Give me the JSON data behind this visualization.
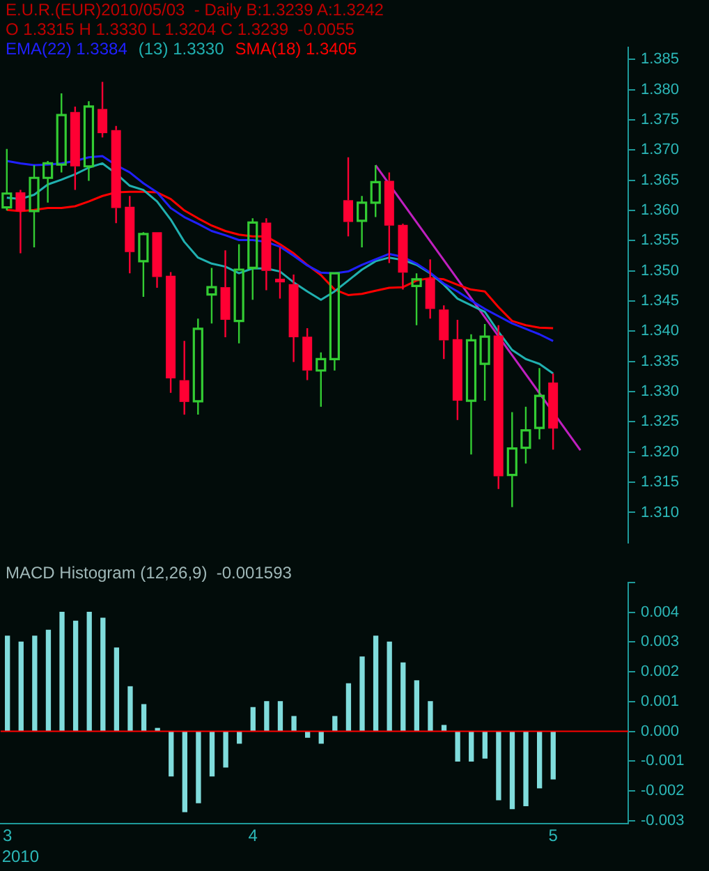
{
  "chart_data": [
    {
      "type": "candlestick",
      "title": "E.U.R.(EUR)2010/05/03  - Daily B:1.3239 A:1.3242",
      "subtitle": "O 1.3315 H 1.3330 L 1.3204 C 1.3239  -0.0055",
      "categories": [
        "3",
        null,
        null,
        null,
        null,
        null,
        null,
        null,
        null,
        null,
        null,
        null,
        null,
        null,
        null,
        null,
        null,
        null,
        "4",
        null,
        null,
        null,
        null,
        null,
        null,
        null,
        null,
        null,
        null,
        null,
        null,
        null,
        null,
        null,
        null,
        null,
        null,
        null,
        null,
        null,
        "5",
        null,
        null,
        null,
        null,
        null
      ],
      "ohlc": [
        [
          1.3605,
          1.3702,
          1.36,
          1.3628
        ],
        [
          1.363,
          1.3634,
          1.3529,
          1.3599
        ],
        [
          1.3599,
          1.3675,
          1.3539,
          1.3654
        ],
        [
          1.3654,
          1.3682,
          1.3613,
          1.3678
        ],
        [
          1.3676,
          1.3794,
          1.3663,
          1.3758
        ],
        [
          1.3763,
          1.3772,
          1.3634,
          1.3673
        ],
        [
          1.3673,
          1.3781,
          1.3649,
          1.3772
        ],
        [
          1.3768,
          1.3813,
          1.3721,
          1.3728
        ],
        [
          1.3733,
          1.374,
          1.3579,
          1.3604
        ],
        [
          1.3606,
          1.3624,
          1.3496,
          1.3531
        ],
        [
          1.3516,
          1.3564,
          1.3457,
          1.3561
        ],
        [
          1.3564,
          1.3564,
          1.3472,
          1.349
        ],
        [
          1.3492,
          1.3498,
          1.3298,
          1.3322
        ],
        [
          1.3319,
          1.3384,
          1.3262,
          1.3283
        ],
        [
          1.3284,
          1.3421,
          1.3262,
          1.3404
        ],
        [
          1.3461,
          1.3505,
          1.3413,
          1.3473
        ],
        [
          1.3473,
          1.3534,
          1.339,
          1.3419
        ],
        [
          1.3417,
          1.3544,
          1.338,
          1.3502
        ],
        [
          1.3505,
          1.3587,
          1.3452,
          1.358
        ],
        [
          1.358,
          1.3587,
          1.3468,
          1.35
        ],
        [
          1.3487,
          1.3539,
          1.3454,
          1.3481
        ],
        [
          1.3478,
          1.3494,
          1.3349,
          1.339
        ],
        [
          1.3391,
          1.3405,
          1.3319,
          1.3335
        ],
        [
          1.3335,
          1.3365,
          1.3275,
          1.3354
        ],
        [
          1.3354,
          1.3496,
          1.3335,
          1.3496
        ],
        [
          1.3617,
          1.3688,
          1.3557,
          1.3581
        ],
        [
          1.3583,
          1.3624,
          1.3539,
          1.3613
        ],
        [
          1.3613,
          1.3675,
          1.3589,
          1.3647
        ],
        [
          1.3649,
          1.3663,
          1.3513,
          1.3575
        ],
        [
          1.3576,
          1.3578,
          1.3469,
          1.3497
        ],
        [
          1.3475,
          1.3496,
          1.341,
          1.3486
        ],
        [
          1.3487,
          1.3519,
          1.3421,
          1.3437
        ],
        [
          1.3436,
          1.3443,
          1.3354,
          1.3385
        ],
        [
          1.3387,
          1.3419,
          1.3253,
          1.3285
        ],
        [
          1.3285,
          1.3395,
          1.3196,
          1.3385
        ],
        [
          1.3346,
          1.3412,
          1.3285,
          1.3391
        ],
        [
          1.3393,
          1.341,
          1.3139,
          1.316
        ],
        [
          1.3162,
          1.3266,
          1.3109,
          1.3206
        ],
        [
          1.3207,
          1.3275,
          1.3181,
          1.3236
        ],
        [
          1.324,
          1.3339,
          1.3221,
          1.3293
        ],
        [
          1.3315,
          1.333,
          1.3204,
          1.3239
        ],
        null,
        null,
        null,
        null,
        null
      ],
      "colors": [
        "#33cc33",
        "#ff0033",
        "#33cc33",
        "#33cc33",
        "#33cc33",
        "#ff0033",
        "#33cc33",
        "#ff0033",
        "#ff0033",
        "#ff0033",
        "#33cc33",
        "#ff0033",
        "#ff0033",
        "#ff0033",
        "#33cc33",
        "#33cc33",
        "#ff0033",
        "#33cc33",
        "#33cc33",
        "#ff0033",
        "#ff0033",
        "#ff0033",
        "#ff0033",
        "#33cc33",
        "#33cc33",
        "#ff0033",
        "#33cc33",
        "#33cc33",
        "#ff0033",
        "#ff0033",
        "#33cc33",
        "#ff0033",
        "#ff0033",
        "#ff0033",
        "#33cc33",
        "#33cc33",
        "#ff0033",
        "#33cc33",
        "#33cc33",
        "#33cc33",
        "#ff0033",
        null,
        null,
        null,
        null,
        null
      ],
      "series": [
        {
          "name": "EMA(22) 1.3384",
          "type": "line",
          "color": "#2020ff",
          "values": [
            1.3682,
            1.3678,
            1.3675,
            1.3676,
            1.3678,
            1.3682,
            1.3688,
            1.369,
            1.3675,
            1.3663,
            1.3645,
            1.363,
            1.3604,
            1.3589,
            1.3578,
            1.3566,
            1.3559,
            1.3551,
            1.3551,
            1.3548,
            1.354,
            1.3525,
            1.3509,
            1.3497,
            1.3496,
            1.3499,
            1.351,
            1.3519,
            1.3528,
            1.3523,
            1.3512,
            1.3497,
            1.3479,
            1.3466,
            1.3451,
            1.3437,
            1.3425,
            1.3413,
            1.3404,
            1.3395,
            1.3384,
            null,
            null,
            null,
            null,
            null
          ]
        },
        {
          "name": "(13) 1.3330",
          "type": "line",
          "color": "#20b0b0",
          "values": [
            1.3621,
            1.3619,
            1.3626,
            1.3643,
            1.3651,
            1.366,
            1.3671,
            1.3678,
            1.3661,
            1.3641,
            1.3634,
            1.3615,
            1.3585,
            1.3548,
            1.3522,
            1.3512,
            1.3507,
            1.3496,
            1.3504,
            1.3504,
            1.3499,
            1.3481,
            1.3466,
            1.3452,
            1.3466,
            1.3484,
            1.3502,
            1.3516,
            1.3522,
            1.3518,
            1.351,
            1.3496,
            1.3477,
            1.3454,
            1.3443,
            1.3432,
            1.3399,
            1.3369,
            1.3354,
            1.3346,
            1.333,
            null,
            null,
            null,
            null,
            null
          ]
        },
        {
          "name": "SMA(18) 1.3405",
          "type": "line",
          "color": "#ff0000",
          "values": [
            1.3601,
            1.3599,
            1.3601,
            1.3604,
            1.3604,
            1.3607,
            1.3615,
            1.3624,
            1.363,
            1.3631,
            1.3631,
            1.363,
            1.3619,
            1.36,
            1.3587,
            1.3575,
            1.3566,
            1.356,
            1.3557,
            1.3557,
            1.3544,
            1.3529,
            1.351,
            1.3493,
            1.3469,
            1.346,
            1.3462,
            1.3467,
            1.3472,
            1.3473,
            1.3484,
            1.3488,
            1.3486,
            1.3477,
            1.3469,
            1.3466,
            1.344,
            1.3417,
            1.341,
            1.3406,
            1.3405,
            null,
            null,
            null,
            null,
            null
          ]
        },
        {
          "type": "line",
          "color": "#c020c0",
          "values": [
            null,
            null,
            null,
            null,
            null,
            null,
            null,
            null,
            null,
            null,
            null,
            null,
            null,
            null,
            null,
            null,
            null,
            null,
            null,
            null,
            null,
            null,
            null,
            null,
            null,
            null,
            null,
            1.3675,
            null,
            null,
            null,
            null,
            null,
            null,
            null,
            null,
            null,
            null,
            null,
            null,
            null,
            null,
            1.3203,
            null,
            null,
            null
          ]
        }
      ],
      "ylim": [
        1.305,
        1.387
      ],
      "yticks": [
        {
          "value": 1.31,
          "label": "1.310"
        },
        {
          "value": 1.315,
          "label": "1.315"
        },
        {
          "value": 1.32,
          "label": "1.320"
        },
        {
          "value": 1.325,
          "label": "1.325"
        },
        {
          "value": 1.33,
          "label": "1.330"
        },
        {
          "value": 1.335,
          "label": "1.335"
        },
        {
          "value": 1.34,
          "label": "1.340"
        },
        {
          "value": 1.345,
          "label": "1.345"
        },
        {
          "value": 1.35,
          "label": "1.350"
        },
        {
          "value": 1.355,
          "label": "1.355"
        },
        {
          "value": 1.36,
          "label": "1.360"
        },
        {
          "value": 1.365,
          "label": "1.365"
        },
        {
          "value": 1.37,
          "label": "1.370"
        },
        {
          "value": 1.375,
          "label": "1.375"
        },
        {
          "value": 1.38,
          "label": "1.380"
        },
        {
          "value": 1.385,
          "label": "1.385"
        }
      ],
      "legend": "top left",
      "marker": "none",
      "tick_labels": "y"
    },
    {
      "type": "bar",
      "title": "MACD Histogram (12,26,9)  -0.001593",
      "categories": [
        "3",
        null,
        null,
        null,
        null,
        null,
        null,
        null,
        null,
        null,
        null,
        null,
        null,
        null,
        null,
        null,
        null,
        null,
        "4",
        null,
        null,
        null,
        null,
        null,
        null,
        null,
        null,
        null,
        null,
        null,
        null,
        null,
        null,
        null,
        null,
        null,
        null,
        null,
        null,
        null,
        "5",
        null,
        null,
        null,
        null,
        null
      ],
      "values": [
        0.0032,
        0.003,
        0.0032,
        0.0034,
        0.004,
        0.0037,
        0.004,
        0.0038,
        0.0028,
        0.0015,
        0.0009,
        0.0001,
        -0.0015,
        -0.0027,
        -0.0024,
        -0.0015,
        -0.0012,
        -0.0004,
        0.0008,
        0.001,
        0.001,
        0.0005,
        -0.0002,
        -0.0004,
        0.0005,
        0.0016,
        0.0025,
        0.0032,
        0.003,
        0.0023,
        0.0017,
        0.001,
        0.0002,
        -0.001,
        -0.001,
        -0.0009,
        -0.0023,
        -0.0026,
        -0.0025,
        -0.0019,
        -0.0016,
        null,
        null,
        null,
        null,
        null
      ],
      "color": "#80dcdc",
      "ylim": [
        -0.0031,
        0.005
      ],
      "yticks": [
        {
          "value": -0.003,
          "label": "-0.003"
        },
        {
          "value": -0.002,
          "label": "-0.002"
        },
        {
          "value": -0.001,
          "label": "-0.001"
        },
        {
          "value": 0,
          "label": "0.000"
        },
        {
          "value": 0.001,
          "label": "0.001"
        },
        {
          "value": 0.002,
          "label": "0.002"
        },
        {
          "value": 0.003,
          "label": "0.003"
        },
        {
          "value": 0.004,
          "label": "0.004"
        },
        {
          "value": 0.005,
          "label": null
        }
      ],
      "ref_lines": [
        {
          "axis": "y",
          "value": 0,
          "color": "#ff0000"
        }
      ],
      "annotations": [
        "2010"
      ]
    }
  ]
}
